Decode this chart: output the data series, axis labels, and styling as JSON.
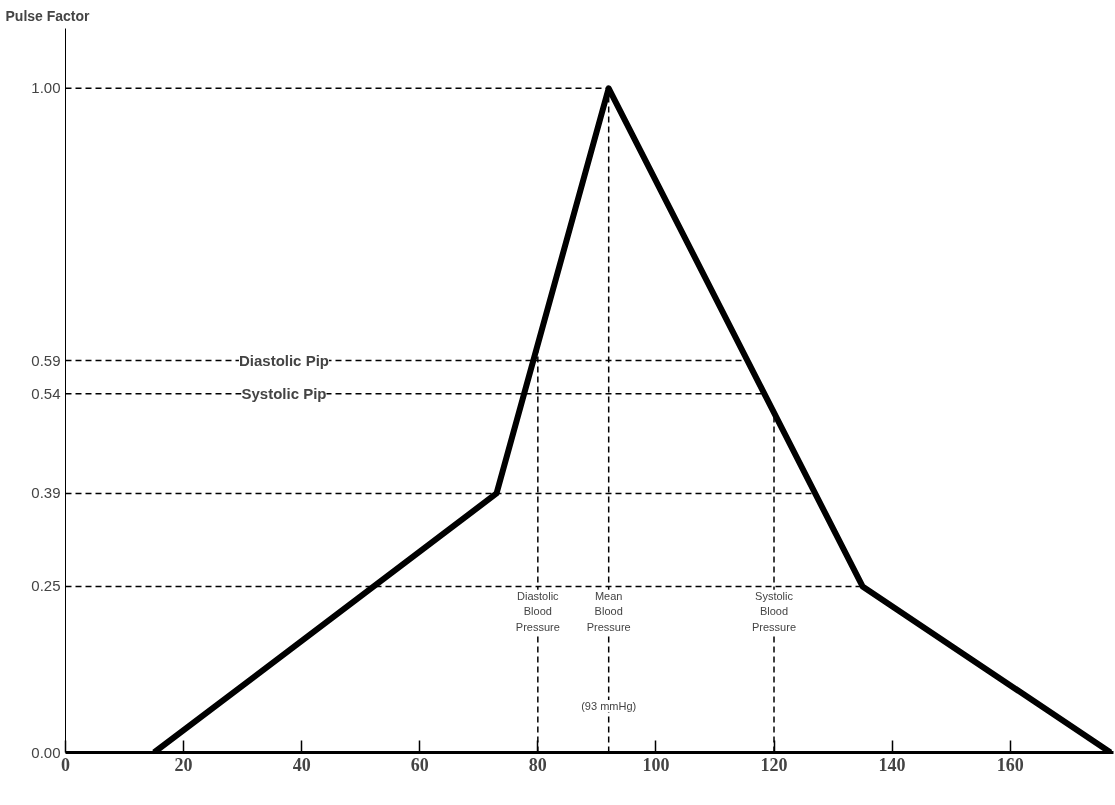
{
  "chart_data": {
    "type": "line",
    "ylabel": "Pulse Factor",
    "x": [
      15,
      73,
      92,
      135,
      177
    ],
    "series": [
      {
        "color": "#000000",
        "values": [
          0,
          0.39,
          1.0,
          0.25,
          0
        ]
      }
    ],
    "xlim": [
      0,
      177.5
    ],
    "ylim": [
      0,
      1.09
    ],
    "xticks": [
      0,
      20,
      40,
      60,
      80,
      100,
      120,
      140,
      160
    ],
    "yticks": [
      {
        "value": 0,
        "label": "0.00"
      },
      {
        "value": 0.25,
        "label": "0.25"
      },
      {
        "value": 0.39,
        "label": "0.39"
      },
      {
        "value": 0.54,
        "label": "0.54"
      },
      {
        "value": 0.59,
        "label": "0.59"
      },
      {
        "value": 1.0,
        "label": "1.00"
      }
    ],
    "ref_lines": [
      {
        "axis": "y",
        "value": 1.0,
        "label": null,
        "line_style": "dashed"
      },
      {
        "axis": "y",
        "value": 0.59,
        "label": "Diastolic Pip",
        "line_style": "dashed"
      },
      {
        "axis": "y",
        "value": 0.54,
        "label": "Systolic Pip",
        "line_style": "dashed"
      },
      {
        "axis": "y",
        "value": 0.39,
        "label": null,
        "line_style": "dashed"
      },
      {
        "axis": "y",
        "value": 0.25,
        "label": null,
        "line_style": "dashed"
      },
      {
        "axis": "x",
        "value": 80,
        "label": "Diastolic Blood Pressure",
        "line_style": "dashed"
      },
      {
        "axis": "x",
        "value": 92,
        "label": "Mean Blood Pressure",
        "line_style": "dashed"
      },
      {
        "axis": "x",
        "value": 120,
        "label": "Systolic Blood Pressure",
        "line_style": "dashed"
      }
    ],
    "annotations": [
      {
        "text": "(93 mmHg)",
        "x": 92,
        "y": 0.07
      }
    ],
    "grid": false,
    "marker": "none",
    "line_style": "solid"
  }
}
